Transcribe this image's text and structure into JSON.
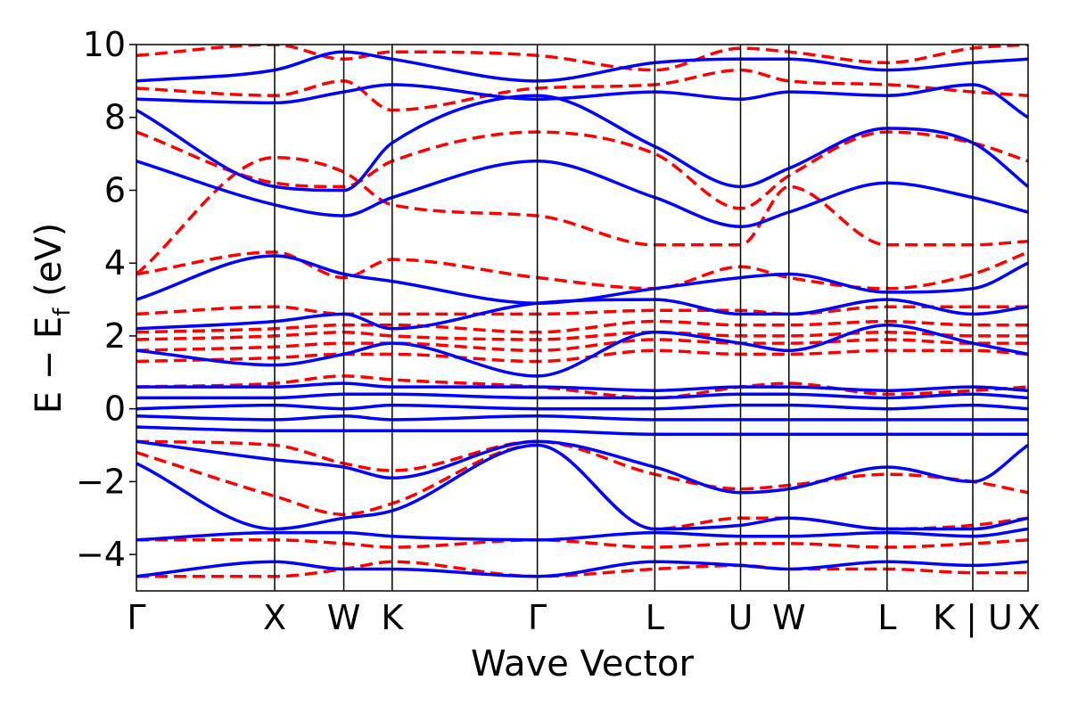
{
  "chart_data": {
    "type": "line",
    "title": "",
    "xlabel": "Wave Vector",
    "ylabel_main": "E − E",
    "ylabel_sub": "f",
    "ylabel_unit": " (eV)",
    "xlim": [
      0,
      6.45
    ],
    "ylim": [
      -5,
      10
    ],
    "yticks": [
      -4,
      -2,
      0,
      2,
      4,
      6,
      8,
      10
    ],
    "ytick_labels": [
      "−4",
      "−2",
      "0",
      "2",
      "4",
      "6",
      "8",
      "10"
    ],
    "kpoints": [
      {
        "label": "Γ",
        "x": 0.0
      },
      {
        "label": "X",
        "x": 1.0
      },
      {
        "label": "W",
        "x": 1.5
      },
      {
        "label": "K",
        "x": 1.85
      },
      {
        "label": "Γ",
        "x": 2.9
      },
      {
        "label": "L",
        "x": 3.75
      },
      {
        "label": "U",
        "x": 4.37
      },
      {
        "label": "W",
        "x": 4.72
      },
      {
        "label": "L",
        "x": 5.43
      },
      {
        "label": "K | U",
        "x": 6.05
      },
      {
        "label": "X",
        "x": 6.45
      }
    ],
    "series": [
      {
        "style": "dashed",
        "color": "#ff0000",
        "bands": [
          [
            -4.6,
            -4.6,
            -4.4,
            -4.2,
            -4.6,
            -4.4,
            -4.3,
            -4.4,
            -4.4,
            -4.5,
            -4.5
          ],
          [
            -3.6,
            -3.6,
            -3.7,
            -3.8,
            -3.6,
            -3.8,
            -3.7,
            -3.7,
            -3.8,
            -3.7,
            -3.6
          ],
          [
            -1.2,
            -2.4,
            -2.9,
            -2.6,
            -1.0,
            -3.3,
            -3.0,
            -3.0,
            -3.3,
            -3.2,
            -3.0
          ],
          [
            -0.9,
            -1.0,
            -1.5,
            -1.7,
            -0.9,
            -1.8,
            -2.2,
            -2.1,
            -1.8,
            -2.0,
            -2.3
          ],
          [
            0.6,
            0.7,
            0.9,
            0.8,
            0.6,
            0.3,
            0.6,
            0.7,
            0.4,
            0.5,
            0.6
          ],
          [
            1.3,
            1.4,
            1.5,
            1.5,
            1.3,
            1.6,
            1.5,
            1.5,
            1.6,
            1.6,
            1.5
          ],
          [
            1.6,
            1.7,
            1.8,
            1.8,
            1.6,
            1.9,
            1.8,
            1.8,
            1.9,
            1.8,
            1.8
          ],
          [
            1.9,
            2.0,
            2.1,
            2.0,
            1.9,
            2.1,
            2.0,
            2.0,
            2.1,
            2.0,
            2.0
          ],
          [
            2.1,
            2.2,
            2.3,
            2.3,
            2.1,
            2.4,
            2.3,
            2.3,
            2.4,
            2.3,
            2.3
          ],
          [
            2.6,
            2.8,
            2.6,
            2.6,
            2.6,
            2.7,
            2.7,
            2.6,
            2.8,
            2.8,
            2.8
          ],
          [
            3.7,
            4.3,
            3.6,
            4.1,
            3.6,
            3.3,
            3.9,
            3.6,
            3.3,
            3.7,
            4.3
          ],
          [
            3.7,
            6.9,
            6.5,
            5.6,
            5.3,
            4.5,
            4.5,
            6.1,
            4.5,
            4.5,
            4.6
          ],
          [
            7.6,
            6.2,
            6.1,
            6.8,
            7.6,
            7.0,
            5.5,
            6.4,
            7.6,
            7.3,
            6.8
          ],
          [
            8.8,
            8.6,
            9.0,
            8.2,
            8.8,
            8.9,
            9.3,
            9.0,
            8.9,
            8.7,
            8.6
          ],
          [
            9.7,
            10.0,
            9.6,
            9.8,
            9.7,
            9.3,
            9.9,
            9.8,
            9.5,
            9.9,
            10.0
          ]
        ]
      },
      {
        "style": "solid",
        "color": "#0000ff",
        "bands": [
          [
            -4.6,
            -4.2,
            -4.4,
            -4.4,
            -4.6,
            -4.2,
            -4.3,
            -4.4,
            -4.2,
            -4.3,
            -4.2
          ],
          [
            -3.6,
            -3.4,
            -3.4,
            -3.5,
            -3.6,
            -3.4,
            -3.5,
            -3.5,
            -3.4,
            -3.5,
            -3.3
          ],
          [
            -1.5,
            -3.3,
            -3.0,
            -2.8,
            -1.0,
            -3.3,
            -3.2,
            -3.0,
            -3.3,
            -3.3,
            -3.0
          ],
          [
            -0.9,
            -1.4,
            -1.6,
            -1.9,
            -0.9,
            -1.6,
            -2.3,
            -2.2,
            -1.6,
            -2.0,
            -1.0
          ],
          [
            -0.5,
            -0.6,
            -0.6,
            -0.6,
            -0.6,
            -0.7,
            -0.7,
            -0.7,
            -0.7,
            -0.7,
            -0.7
          ],
          [
            -0.2,
            -0.3,
            -0.2,
            -0.3,
            -0.2,
            -0.3,
            -0.3,
            -0.3,
            -0.3,
            -0.3,
            -0.3
          ],
          [
            0.0,
            0.1,
            0.0,
            0.1,
            0.0,
            0.0,
            0.1,
            0.1,
            0.0,
            0.1,
            0.0
          ],
          [
            0.3,
            0.3,
            0.4,
            0.4,
            0.3,
            0.3,
            0.4,
            0.4,
            0.3,
            0.4,
            0.3
          ],
          [
            0.6,
            0.6,
            0.7,
            0.6,
            0.6,
            0.5,
            0.6,
            0.6,
            0.5,
            0.6,
            0.5
          ],
          [
            1.6,
            1.2,
            1.5,
            1.8,
            0.9,
            2.1,
            1.8,
            1.6,
            2.3,
            1.8,
            1.5
          ],
          [
            2.2,
            2.4,
            2.6,
            2.2,
            2.9,
            3.0,
            2.6,
            2.6,
            3.0,
            2.6,
            2.8
          ],
          [
            3.0,
            4.2,
            3.7,
            3.5,
            2.9,
            3.3,
            3.6,
            3.7,
            3.2,
            3.3,
            4.0
          ],
          [
            6.8,
            5.6,
            5.3,
            5.8,
            6.8,
            5.8,
            5.0,
            5.4,
            6.2,
            5.8,
            5.4
          ],
          [
            8.2,
            6.1,
            6.0,
            7.3,
            8.6,
            7.2,
            6.1,
            6.6,
            7.7,
            7.3,
            6.1
          ],
          [
            8.5,
            8.4,
            8.7,
            8.9,
            8.5,
            8.7,
            8.5,
            8.7,
            8.6,
            8.9,
            8.0
          ],
          [
            9.0,
            9.3,
            9.8,
            9.6,
            9.0,
            9.5,
            9.6,
            9.6,
            9.3,
            9.5,
            9.6
          ]
        ]
      }
    ]
  }
}
